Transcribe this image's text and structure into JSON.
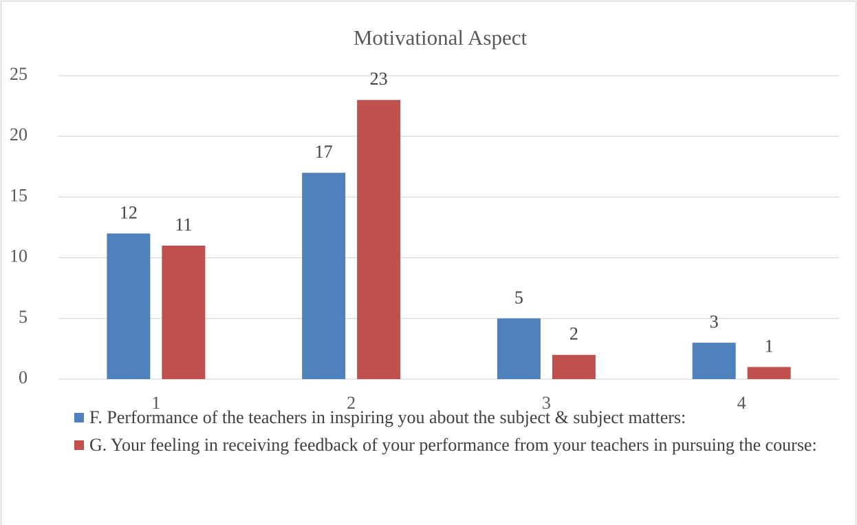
{
  "chart_data": {
    "type": "bar",
    "title": "Motivational Aspect",
    "categories": [
      "1",
      "2",
      "3",
      "4"
    ],
    "series": [
      {
        "name": "F. Performance of the teachers in inspiring you about the subject & subject matters:",
        "color": "#4f81bd",
        "values": [
          12,
          17,
          5,
          3
        ]
      },
      {
        "name": "G. Your feeling in receiving feedback of your performance from your teachers in pursuing the course:",
        "color": "#c0504d",
        "values": [
          11,
          23,
          2,
          1
        ]
      }
    ],
    "ylim": [
      0,
      25
    ],
    "yticks": [
      0,
      5,
      10,
      15,
      20,
      25
    ],
    "grid": true,
    "legend": "bottom"
  }
}
